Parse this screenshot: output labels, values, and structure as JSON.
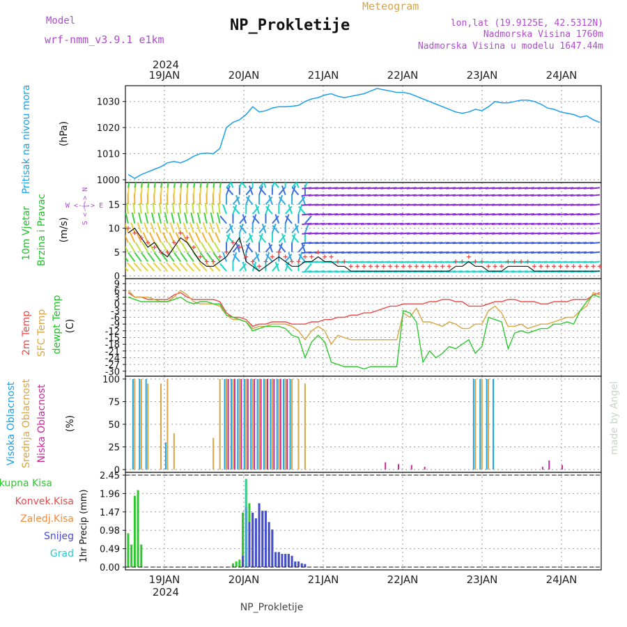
{
  "header": {
    "model_label": "Model",
    "model_name": "wrf-nmm_v3.9.1  e1km",
    "title": "NP_Prokletije",
    "subtitle": "Meteogram",
    "lonlat": "lon,lat (19.9125E, 42.5312N)",
    "elevation": "Nadmorska Visina 1760m",
    "model_elevation": "Nadmorska Visina u modelu 1647.44m"
  },
  "footer": {
    "station": "NP_Prokletije",
    "credit": "made by Angel"
  },
  "time_axis": {
    "year": "2024",
    "days": [
      "19JAN",
      "20JAN",
      "21JAN",
      "22JAN",
      "23JAN",
      "24JAN"
    ],
    "start": "18JAN 12UTC",
    "end": "24JAN 12UTC"
  },
  "colors": {
    "pressure": "#1a9fe8",
    "temp2m": "#e84a4a",
    "sfc": "#d9a441",
    "dewpt": "#2ec82e",
    "high_cloud": "#1aa6e8",
    "mid_cloud": "#d9a441",
    "low_cloud": "#c8279a",
    "precip_total": "#2ec82e",
    "precip_conv": "#e84a4a",
    "precip_frz": "#f08a3c",
    "precip_snow": "#4a4ad0",
    "precip_graupel": "#2ec8c8",
    "wind_label": "#22c02a",
    "wind_dir_label": "#b04ad0"
  },
  "panels": {
    "pressure": {
      "label": "Pritisak na nivou mora",
      "unit": "(hPa)"
    },
    "wind": {
      "label1": "10m Vjetar",
      "label2": "Brzina i Pravac",
      "unit": "(m/s)",
      "compass": "W <-|-> E",
      "compass_v": "S <-|-> N"
    },
    "temp": {
      "label1": "2m Temp",
      "label2": "SFC Temp",
      "label3": "dewpt Temp",
      "unit": "(C)"
    },
    "cloud": {
      "label1": "Visoka Oblacnost",
      "label2": "Srednja Oblacnost",
      "label3": "Niska Oblacnost",
      "unit": "(%)"
    },
    "precip": {
      "unit": "1hr Precip (mm)",
      "legend": [
        "Ukupna Kisa",
        "Konvek.Kisa",
        "Zaledj.Kisa",
        "Snijeg",
        "Grad"
      ]
    }
  },
  "chart_data": [
    {
      "type": "line",
      "name": "pressure",
      "x_hours": [
        0,
        2,
        4,
        6,
        8,
        10,
        12,
        14,
        16,
        18,
        20,
        22,
        24,
        26,
        28,
        30,
        32,
        34,
        36,
        38,
        40,
        42,
        44,
        46,
        48,
        50,
        52,
        54,
        56,
        58,
        60,
        62,
        64,
        66,
        68,
        70,
        72,
        74,
        76,
        78,
        80,
        82,
        84,
        86,
        88,
        90,
        92,
        94,
        96,
        98,
        100,
        102,
        104,
        106,
        108,
        110,
        112,
        114,
        116,
        118,
        120,
        122,
        124,
        126,
        128,
        130,
        132,
        134,
        136,
        138,
        140,
        142,
        144
      ],
      "values": [
        1002,
        1000.5,
        1002,
        1003,
        1004,
        1005,
        1006.5,
        1007,
        1006.5,
        1007.5,
        1009,
        1010,
        1010.2,
        1010,
        1012,
        1020,
        1022,
        1023,
        1025,
        1028,
        1026,
        1026.5,
        1027.5,
        1028,
        1028,
        1028.2,
        1028.5,
        1030,
        1031,
        1031.5,
        1032.5,
        1033,
        1032,
        1031.5,
        1032,
        1032.5,
        1033,
        1034,
        1035,
        1034.5,
        1034,
        1033.5,
        1033.5,
        1033,
        1032,
        1031,
        1030,
        1029,
        1028,
        1027,
        1026,
        1025.5,
        1026,
        1027,
        1026.5,
        1028,
        1030,
        1029.5,
        1029.5,
        1030,
        1030.5,
        1030.5,
        1030,
        1029,
        1027.5,
        1027,
        1026,
        1025.5,
        1025,
        1024,
        1024.5,
        1023,
        1022
      ],
      "ylim": [
        1000,
        1035
      ],
      "yticks": [
        1000,
        1010,
        1020,
        1030
      ]
    },
    {
      "type": "scatter",
      "name": "wind",
      "ylim": [
        0,
        19
      ],
      "yticks": [
        0,
        5,
        10,
        15
      ],
      "x_hours": [
        0,
        2,
        4,
        6,
        8,
        10,
        12,
        14,
        16,
        18,
        20,
        22,
        24,
        26,
        28,
        30,
        32,
        34,
        36,
        38,
        40,
        42,
        44,
        46,
        48,
        50,
        52,
        54,
        56,
        58,
        60,
        62,
        64,
        66,
        68,
        70,
        72,
        74,
        76,
        78,
        80,
        82,
        84,
        86,
        88,
        90,
        92,
        94,
        96,
        98,
        100,
        102,
        104,
        106,
        108,
        110,
        112,
        114,
        116,
        118,
        120,
        122,
        124,
        126,
        128,
        130,
        132,
        134,
        136,
        138,
        140,
        142,
        144
      ],
      "speed": [
        9,
        10,
        8,
        6,
        7,
        5,
        4,
        6,
        8,
        7,
        5,
        3,
        2,
        2,
        3,
        4,
        6,
        8,
        3,
        2,
        1,
        2,
        3,
        4,
        3,
        2,
        2,
        3,
        3,
        4,
        3,
        3,
        2,
        2,
        1,
        1,
        1,
        1,
        1,
        1,
        1,
        1,
        1,
        1,
        1,
        1,
        1,
        1,
        1,
        1,
        2,
        2,
        3,
        2,
        2,
        1,
        1,
        1,
        2,
        2,
        2,
        2,
        1,
        1,
        1,
        1,
        1,
        1,
        1,
        1,
        1,
        1,
        1
      ],
      "gust": [
        10,
        9,
        8,
        7,
        6,
        5,
        5,
        7,
        9,
        8,
        6,
        4,
        3,
        3,
        4,
        5,
        7,
        6,
        4,
        3,
        2,
        3,
        4,
        5,
        4,
        3,
        3,
        4,
        4,
        5,
        4,
        4,
        3,
        3,
        2,
        2,
        2,
        2,
        2,
        2,
        2,
        2,
        2,
        2,
        2,
        2,
        2,
        2,
        2,
        2,
        3,
        3,
        4,
        3,
        3,
        2,
        2,
        2,
        3,
        3,
        3,
        3,
        2,
        2,
        2,
        2,
        2,
        2,
        2,
        2,
        2,
        2,
        2
      ]
    },
    {
      "type": "line",
      "name": "temperature",
      "ylim": [
        -31,
        10
      ],
      "yticks": [
        9,
        6,
        3,
        0,
        -3,
        -6,
        -9,
        -12,
        -15,
        -18,
        -21,
        -24,
        -27,
        -30
      ],
      "x_hours": [
        0,
        2,
        4,
        6,
        8,
        10,
        12,
        14,
        16,
        18,
        20,
        22,
        24,
        26,
        28,
        30,
        32,
        34,
        36,
        38,
        40,
        42,
        44,
        46,
        48,
        50,
        52,
        54,
        56,
        58,
        60,
        62,
        64,
        66,
        68,
        70,
        72,
        74,
        76,
        78,
        80,
        82,
        84,
        86,
        88,
        90,
        92,
        94,
        96,
        98,
        100,
        102,
        104,
        106,
        108,
        110,
        112,
        114,
        116,
        118,
        120,
        122,
        124,
        126,
        128,
        130,
        132,
        134,
        136,
        138,
        140,
        142,
        144
      ],
      "series": [
        {
          "name": "2m Temp",
          "values": [
            5,
            3,
            3,
            2,
            2,
            2,
            2,
            4,
            5,
            3,
            2,
            2,
            2,
            2,
            1,
            -4,
            -6,
            -6,
            -7,
            -10,
            -9,
            -9,
            -8,
            -8,
            -8,
            -9,
            -9,
            -9,
            -8,
            -8,
            -7,
            -7,
            -6,
            -6,
            -5,
            -5,
            -4,
            -4,
            -3,
            -2,
            -1,
            -1,
            0,
            0,
            0,
            0,
            1,
            1,
            2,
            2,
            1,
            1,
            -1,
            -1,
            -1,
            0,
            1,
            1,
            2,
            2,
            1,
            1,
            1,
            0,
            0,
            1,
            1,
            1,
            2,
            2,
            2,
            4,
            5
          ]
        },
        {
          "name": "SFC Temp",
          "values": [
            6,
            3,
            3,
            3,
            2,
            1,
            1,
            3,
            6,
            4,
            1,
            0,
            0,
            0,
            -1,
            -5,
            -7,
            -7,
            -8,
            -11,
            -10,
            -10,
            -9,
            -9,
            -9,
            -10,
            -12,
            -16,
            -12,
            -10,
            -12,
            -18,
            -14,
            -15,
            -16,
            -16,
            -16,
            -16,
            -16,
            -16,
            -16,
            -16,
            -4,
            -6,
            -2,
            -8,
            -8,
            -9,
            -10,
            -8,
            -9,
            -11,
            -11,
            -9,
            -9,
            -3,
            -1,
            -4,
            -10,
            -10,
            -9,
            -11,
            -10,
            -9,
            -9,
            -8,
            -7,
            -6,
            -6,
            -3,
            -1,
            5,
            4
          ]
        },
        {
          "name": "dewpt Temp",
          "values": [
            3,
            2,
            1,
            1,
            1,
            1,
            1,
            2,
            3,
            1,
            0,
            1,
            1,
            0,
            0,
            -5,
            -6,
            -7,
            -8,
            -12,
            -11,
            -10,
            -10,
            -10,
            -11,
            -14,
            -15,
            -24,
            -17,
            -14,
            -17,
            -26,
            -27,
            -28,
            -28,
            -28,
            -29,
            -28,
            -28,
            -28,
            -28,
            -28,
            -3,
            -4,
            -8,
            -26,
            -21,
            -24,
            -22,
            -19,
            -20,
            -18,
            -16,
            -22,
            -19,
            -6,
            -7,
            -8,
            -20,
            -13,
            -12,
            -13,
            -12,
            -11,
            -11,
            -9,
            -9,
            -8,
            -9,
            -3,
            1,
            4,
            3
          ]
        }
      ]
    },
    {
      "type": "bar",
      "name": "cloud",
      "ylim": [
        0,
        100
      ],
      "yticks": [
        0,
        25,
        50,
        75,
        100
      ],
      "x_hours": [
        0,
        2,
        4,
        6,
        8,
        10,
        12,
        14,
        16,
        18,
        20,
        22,
        24,
        26,
        28,
        30,
        32,
        34,
        36,
        38,
        40,
        42,
        44,
        46,
        48,
        50,
        52,
        54,
        56,
        58,
        60,
        62,
        64,
        66,
        68,
        70,
        72,
        74,
        76,
        78,
        80,
        82,
        84,
        86,
        88,
        90,
        92,
        94,
        96,
        98,
        100,
        102,
        104,
        106,
        108,
        110,
        112,
        114,
        116,
        118,
        120,
        122,
        124,
        126,
        128,
        130,
        132,
        134,
        136,
        138,
        140,
        142,
        144
      ],
      "series": [
        {
          "name": "Visoka Oblacnost",
          "values": [
            0,
            100,
            100,
            100,
            0,
            0,
            30,
            0,
            0,
            0,
            0,
            0,
            0,
            0,
            0,
            100,
            100,
            100,
            100,
            100,
            100,
            100,
            100,
            100,
            100,
            100,
            0,
            0,
            0,
            0,
            0,
            0,
            0,
            0,
            0,
            0,
            0,
            0,
            0,
            0,
            0,
            0,
            0,
            0,
            0,
            0,
            0,
            0,
            0,
            0,
            0,
            0,
            0,
            100,
            100,
            100,
            100,
            0,
            0,
            0,
            0,
            0,
            0,
            0,
            0,
            0,
            0,
            0,
            0,
            0,
            0,
            0,
            0
          ]
        },
        {
          "name": "Srednja Oblacnost",
          "values": [
            0,
            100,
            100,
            95,
            0,
            95,
            100,
            40,
            0,
            0,
            0,
            0,
            0,
            35,
            100,
            100,
            100,
            100,
            100,
            100,
            100,
            100,
            100,
            100,
            100,
            100,
            100,
            95,
            0,
            0,
            0,
            0,
            0,
            0,
            0,
            0,
            0,
            0,
            0,
            0,
            0,
            0,
            0,
            0,
            0,
            0,
            0,
            0,
            0,
            0,
            0,
            0,
            0,
            100,
            100,
            100,
            0,
            0,
            0,
            0,
            0,
            0,
            0,
            0,
            0,
            0,
            0,
            0,
            0,
            0,
            0,
            0,
            0
          ]
        },
        {
          "name": "Niska Oblacnost",
          "values": [
            0,
            0,
            0,
            0,
            0,
            0,
            0,
            0,
            0,
            0,
            0,
            0,
            0,
            0,
            0,
            100,
            100,
            100,
            100,
            100,
            100,
            100,
            100,
            100,
            100,
            0,
            0,
            0,
            0,
            0,
            0,
            0,
            0,
            0,
            0,
            0,
            0,
            0,
            0,
            8,
            0,
            6,
            0,
            5,
            0,
            3,
            0,
            0,
            0,
            0,
            0,
            0,
            0,
            0,
            0,
            0,
            0,
            0,
            0,
            0,
            0,
            0,
            0,
            3,
            10,
            0,
            5,
            0,
            0,
            0,
            0,
            0,
            0
          ]
        }
      ]
    },
    {
      "type": "bar",
      "name": "precipitation",
      "ylim": [
        0,
        2.45
      ],
      "yticks": [
        0,
        0.49,
        0.98,
        1.47,
        1.96,
        2.45
      ],
      "x_hours": [
        0,
        1,
        2,
        3,
        4,
        5,
        6,
        32,
        33,
        34,
        35,
        36,
        37,
        38,
        39,
        40,
        41,
        42,
        43,
        44,
        45,
        46,
        47,
        48,
        49,
        50,
        51,
        52,
        53,
        54,
        55
      ],
      "series": [
        {
          "name": "Ukupna Kisa",
          "values": [
            0.9,
            0.6,
            1.9,
            2.05,
            0.6,
            0,
            0,
            0.1,
            0.15,
            0.2,
            1.45,
            2.35,
            1.7,
            1.45,
            1.3,
            1.7,
            1.5,
            1.5,
            1.2,
            1.0,
            0.4,
            0.4,
            0.35,
            0.35,
            0.35,
            0.3,
            0.15,
            0.15,
            0.1,
            0.08,
            0
          ]
        },
        {
          "name": "Snijeg",
          "values": [
            0,
            0,
            0,
            0,
            0,
            0,
            0,
            0,
            0,
            0,
            0.3,
            1.6,
            1.2,
            1.45,
            1.3,
            1.7,
            1.5,
            1.5,
            1.2,
            1.0,
            0.4,
            0.4,
            0.35,
            0.35,
            0.35,
            0.3,
            0.15,
            0.15,
            0.1,
            0.08,
            0
          ]
        },
        {
          "name": "Grad",
          "values": [
            0,
            0,
            0,
            0,
            0,
            0,
            0,
            0,
            0,
            0,
            0,
            2.35,
            0,
            0,
            0,
            0,
            0,
            0,
            0,
            0,
            0,
            0,
            0,
            0,
            0,
            0,
            0,
            0,
            0,
            0,
            0
          ]
        }
      ]
    }
  ]
}
